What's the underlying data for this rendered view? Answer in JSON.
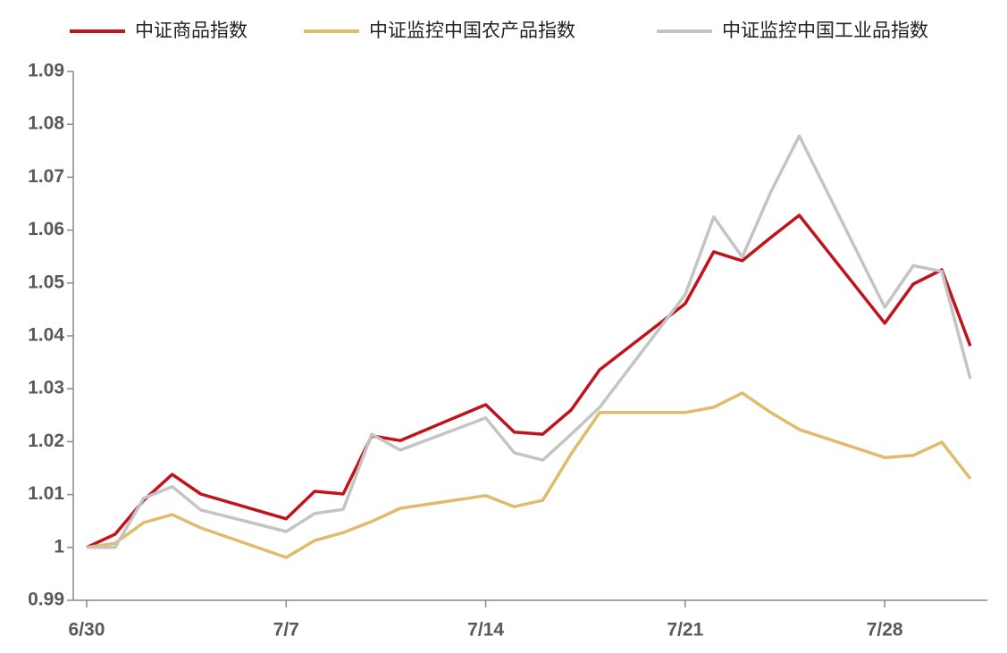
{
  "chart_data": {
    "type": "line",
    "x": [
      0,
      1,
      2,
      3,
      4,
      7,
      8,
      9,
      10,
      11,
      14,
      15,
      16,
      17,
      18,
      21,
      22,
      23,
      24,
      25,
      28,
      29,
      30,
      31
    ],
    "series": [
      {
        "name": "中证商品指数",
        "color": "#c0131b",
        "values": [
          1.0,
          1.0025,
          1.0089,
          1.0138,
          1.0101,
          1.0054,
          1.0106,
          1.0101,
          1.0211,
          1.0202,
          1.027,
          1.0218,
          1.0214,
          1.026,
          1.0336,
          1.0461,
          1.0559,
          1.0542,
          1.0586,
          1.0628,
          1.0424,
          1.0498,
          1.0525,
          1.0381
        ]
      },
      {
        "name": "中证监控中国农产品指数",
        "color": "#e0bc6a",
        "values": [
          1.0,
          1.0008,
          1.0047,
          1.0062,
          1.0037,
          0.9981,
          1.0013,
          1.0028,
          1.0049,
          1.0074,
          1.0098,
          1.0077,
          1.0089,
          1.0177,
          1.0255,
          1.0255,
          1.0265,
          1.0292,
          1.0255,
          1.0223,
          1.017,
          1.0174,
          1.0199,
          1.013
        ]
      },
      {
        "name": "中证监控中国工业品指数",
        "color": "#c4c4c4",
        "values": [
          1.0,
          1.0,
          1.0093,
          1.0115,
          1.0071,
          1.003,
          1.0064,
          1.0072,
          1.0214,
          1.0184,
          1.0245,
          1.0179,
          1.0165,
          1.0214,
          1.0265,
          1.0478,
          1.0625,
          1.0549,
          1.0672,
          1.0778,
          1.0454,
          1.0533,
          1.0522,
          1.0319
        ]
      }
    ],
    "xlim": [
      -0.47,
      31.6
    ],
    "xticks": [
      {
        "value": 0,
        "label": "6/30"
      },
      {
        "value": 7,
        "label": "7/7"
      },
      {
        "value": 14,
        "label": "7/14"
      },
      {
        "value": 21,
        "label": "7/21"
      },
      {
        "value": 28,
        "label": "7/28"
      }
    ],
    "ylim": [
      0.99,
      1.09
    ],
    "yticks": [
      0.99,
      1,
      1.01,
      1.02,
      1.03,
      1.04,
      1.05,
      1.06,
      1.07,
      1.08,
      1.09
    ],
    "grid": false,
    "legend": "top"
  }
}
